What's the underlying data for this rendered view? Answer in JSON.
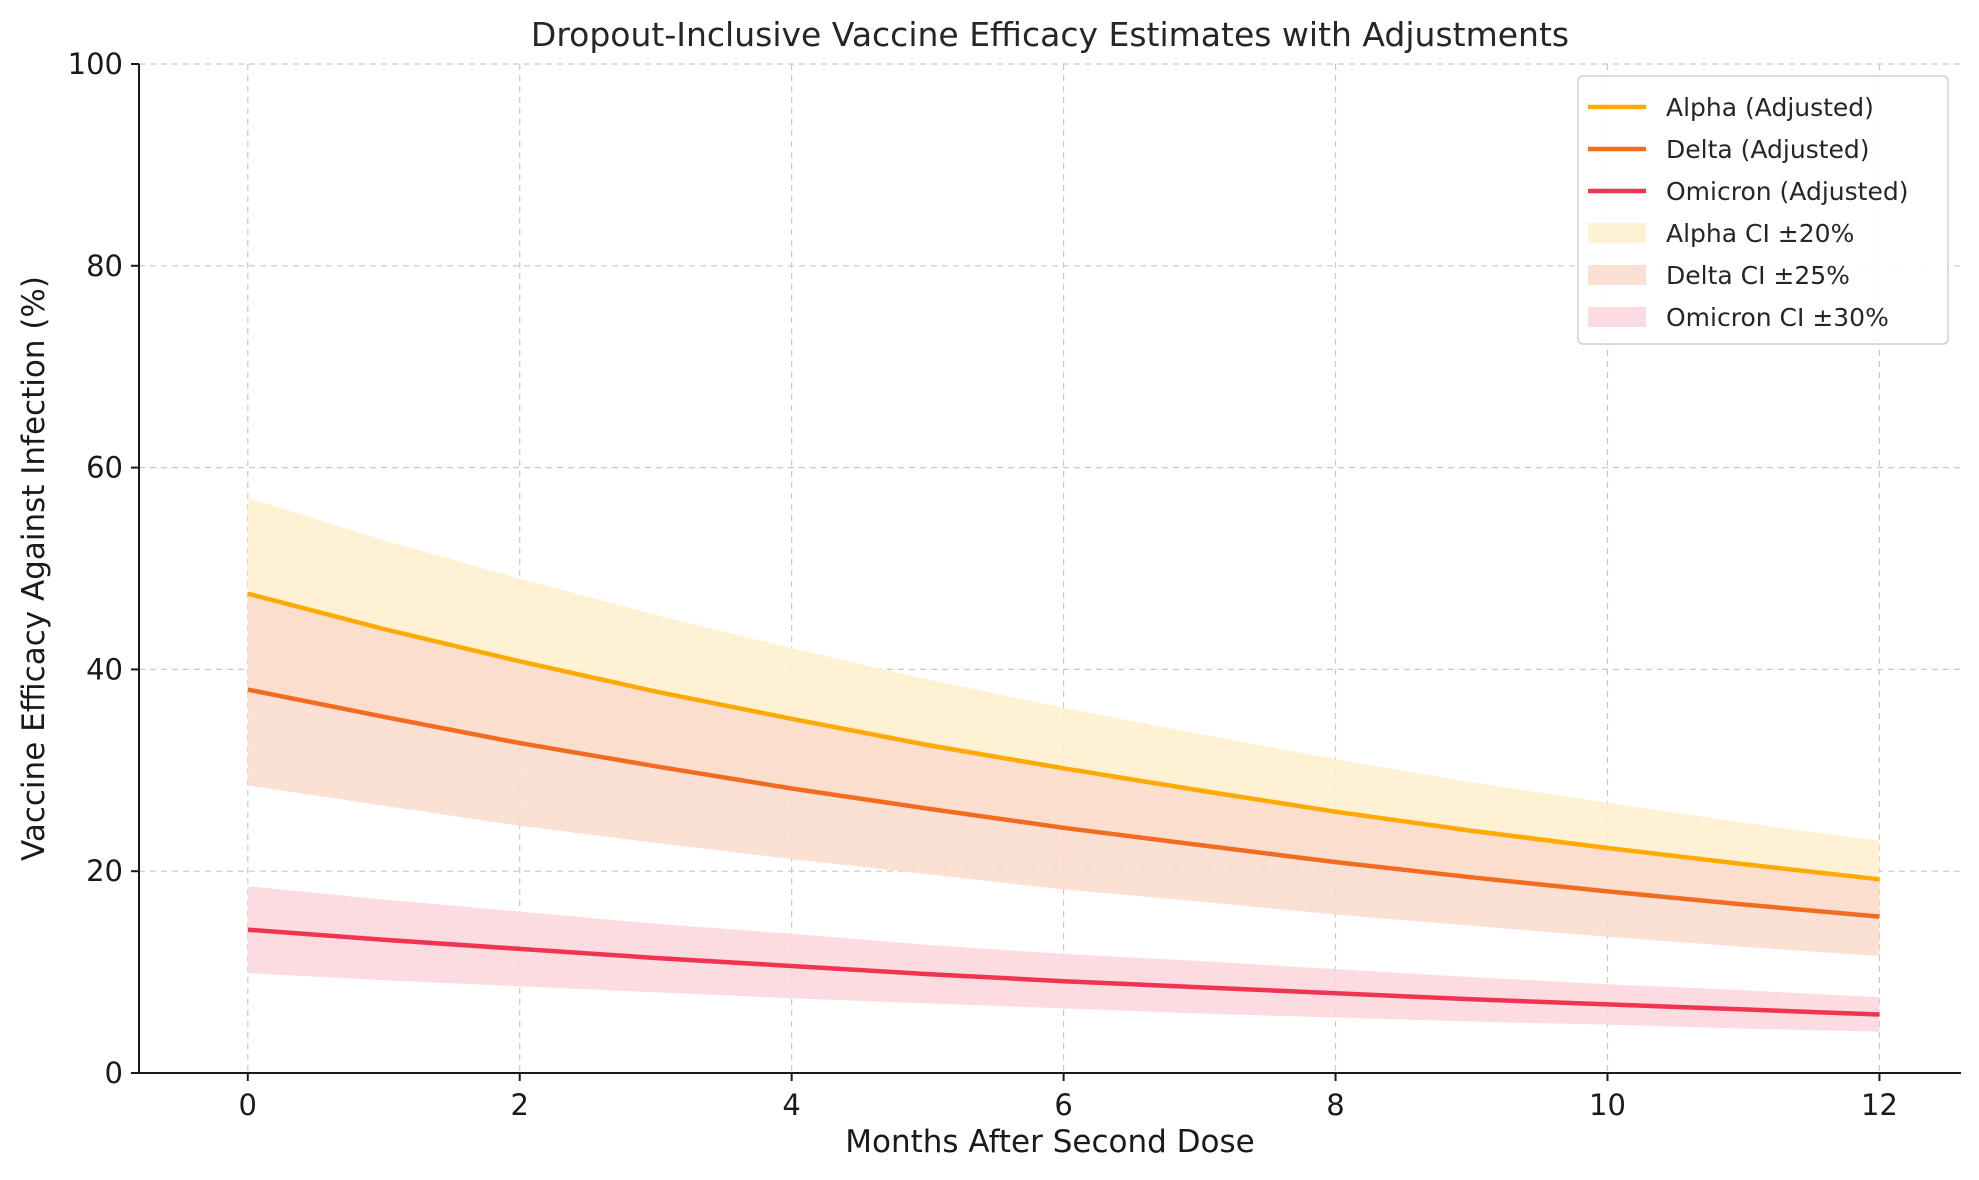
{
  "chart_data": {
    "type": "line",
    "title": "Dropout-Inclusive Vaccine Efficacy Estimates with Adjustments",
    "xlabel": "Months After Second Dose",
    "ylabel": "Vaccine Efficacy Against Infection (%)",
    "xlim": [
      -0.8,
      12.6
    ],
    "ylim": [
      0,
      100
    ],
    "xticks": [
      0,
      2,
      4,
      6,
      8,
      10,
      12
    ],
    "yticks": [
      0,
      20,
      40,
      60,
      80,
      100
    ],
    "grid": true,
    "legend_position": "top-right",
    "x": [
      0,
      1,
      2,
      3,
      4,
      5,
      6,
      7,
      8,
      9,
      10,
      11,
      12
    ],
    "series": [
      {
        "name": "Alpha (Adjusted)",
        "color": "#FFAA00",
        "values": [
          47.5,
          44.0,
          40.8,
          37.8,
          35.1,
          32.5,
          30.2,
          28.0,
          25.9,
          24.0,
          22.3,
          20.7,
          19.2
        ],
        "ci_name": "Alpha CI ±20%",
        "ci_color": "#FFEFCC",
        "ci_lower": [
          38.0,
          35.2,
          32.6,
          30.2,
          28.1,
          26.0,
          24.2,
          22.4,
          20.7,
          19.2,
          17.8,
          16.6,
          15.4
        ],
        "ci_upper": [
          57.0,
          52.8,
          49.0,
          45.4,
          42.1,
          39.0,
          36.2,
          33.6,
          31.1,
          28.8,
          26.8,
          24.8,
          23.0
        ]
      },
      {
        "name": "Delta (Adjusted)",
        "color": "#F26B21",
        "values": [
          38.0,
          35.3,
          32.7,
          30.4,
          28.2,
          26.2,
          24.3,
          22.6,
          20.9,
          19.4,
          18.0,
          16.7,
          15.5
        ],
        "ci_name": "Delta CI ±25%",
        "ci_color": "#FADBCC",
        "ci_lower": [
          28.5,
          26.5,
          24.5,
          22.8,
          21.2,
          19.7,
          18.2,
          17.0,
          15.7,
          14.6,
          13.5,
          12.5,
          11.6
        ],
        "ci_upper": [
          47.5,
          44.1,
          40.9,
          38.0,
          35.3,
          32.8,
          30.4,
          28.3,
          26.1,
          24.3,
          22.5,
          20.9,
          19.4
        ]
      },
      {
        "name": "Omicron (Adjusted)",
        "color": "#F03350",
        "values": [
          14.2,
          13.2,
          12.3,
          11.4,
          10.6,
          9.8,
          9.1,
          8.5,
          7.9,
          7.3,
          6.8,
          6.3,
          5.8
        ],
        "ci_name": "Omicron CI ±30%",
        "ci_color": "#FCD5DC",
        "ci_lower": [
          9.9,
          9.2,
          8.6,
          8.0,
          7.4,
          6.9,
          6.4,
          5.9,
          5.5,
          5.1,
          4.8,
          4.4,
          4.1
        ],
        "ci_upper": [
          18.5,
          17.2,
          16.0,
          14.8,
          13.8,
          12.7,
          11.8,
          11.1,
          10.3,
          9.5,
          8.8,
          8.2,
          7.5
        ]
      }
    ],
    "legend_order": [
      {
        "label": "Alpha (Adjusted)",
        "kind": "line",
        "series": 0
      },
      {
        "label": "Delta (Adjusted)",
        "kind": "line",
        "series": 1
      },
      {
        "label": "Omicron (Adjusted)",
        "kind": "line",
        "series": 2
      },
      {
        "label": "Alpha CI ±20%",
        "kind": "band",
        "series": 0
      },
      {
        "label": "Delta CI ±25%",
        "kind": "band",
        "series": 1
      },
      {
        "label": "Omicron CI ±30%",
        "kind": "band",
        "series": 2
      }
    ]
  }
}
